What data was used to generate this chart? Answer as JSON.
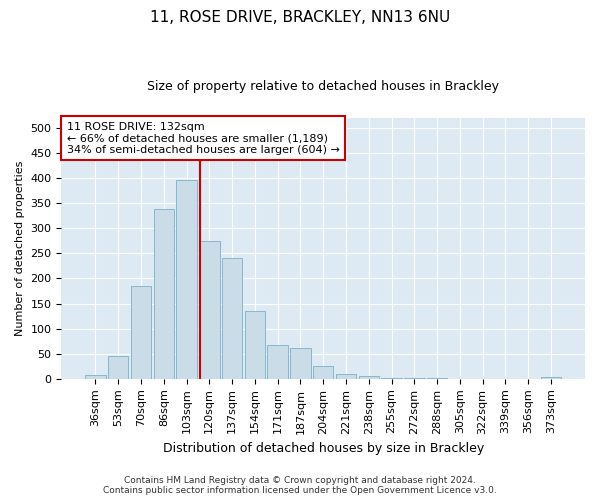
{
  "title": "11, ROSE DRIVE, BRACKLEY, NN13 6NU",
  "subtitle": "Size of property relative to detached houses in Brackley",
  "xlabel": "Distribution of detached houses by size in Brackley",
  "ylabel": "Number of detached properties",
  "bar_color": "#c9dce8",
  "bar_edge_color": "#7aafc8",
  "background_color": "#ddeaf4",
  "grid_color": "#ffffff",
  "fig_background": "#ffffff",
  "categories": [
    "36sqm",
    "53sqm",
    "70sqm",
    "86sqm",
    "103sqm",
    "120sqm",
    "137sqm",
    "154sqm",
    "171sqm",
    "187sqm",
    "204sqm",
    "221sqm",
    "238sqm",
    "255sqm",
    "272sqm",
    "288sqm",
    "305sqm",
    "322sqm",
    "339sqm",
    "356sqm",
    "373sqm"
  ],
  "values": [
    8,
    46,
    185,
    338,
    397,
    275,
    240,
    136,
    68,
    62,
    25,
    10,
    5,
    2,
    1,
    1,
    0,
    0,
    0,
    0,
    4
  ],
  "ylim": [
    0,
    520
  ],
  "yticks": [
    0,
    50,
    100,
    150,
    200,
    250,
    300,
    350,
    400,
    450,
    500
  ],
  "property_line_x": 4.57,
  "property_line_color": "#cc0000",
  "annotation_line1": "11 ROSE DRIVE: 132sqm",
  "annotation_line2": "← 66% of detached houses are smaller (1,189)",
  "annotation_line3": "34% of semi-detached houses are larger (604) →",
  "annotation_box_color": "#cc0000",
  "title_fontsize": 11,
  "subtitle_fontsize": 9,
  "ylabel_fontsize": 8,
  "xlabel_fontsize": 9,
  "tick_fontsize": 8,
  "annot_fontsize": 8,
  "footer_line1": "Contains HM Land Registry data © Crown copyright and database right 2024.",
  "footer_line2": "Contains public sector information licensed under the Open Government Licence v3.0.",
  "footer_fontsize": 6.5
}
